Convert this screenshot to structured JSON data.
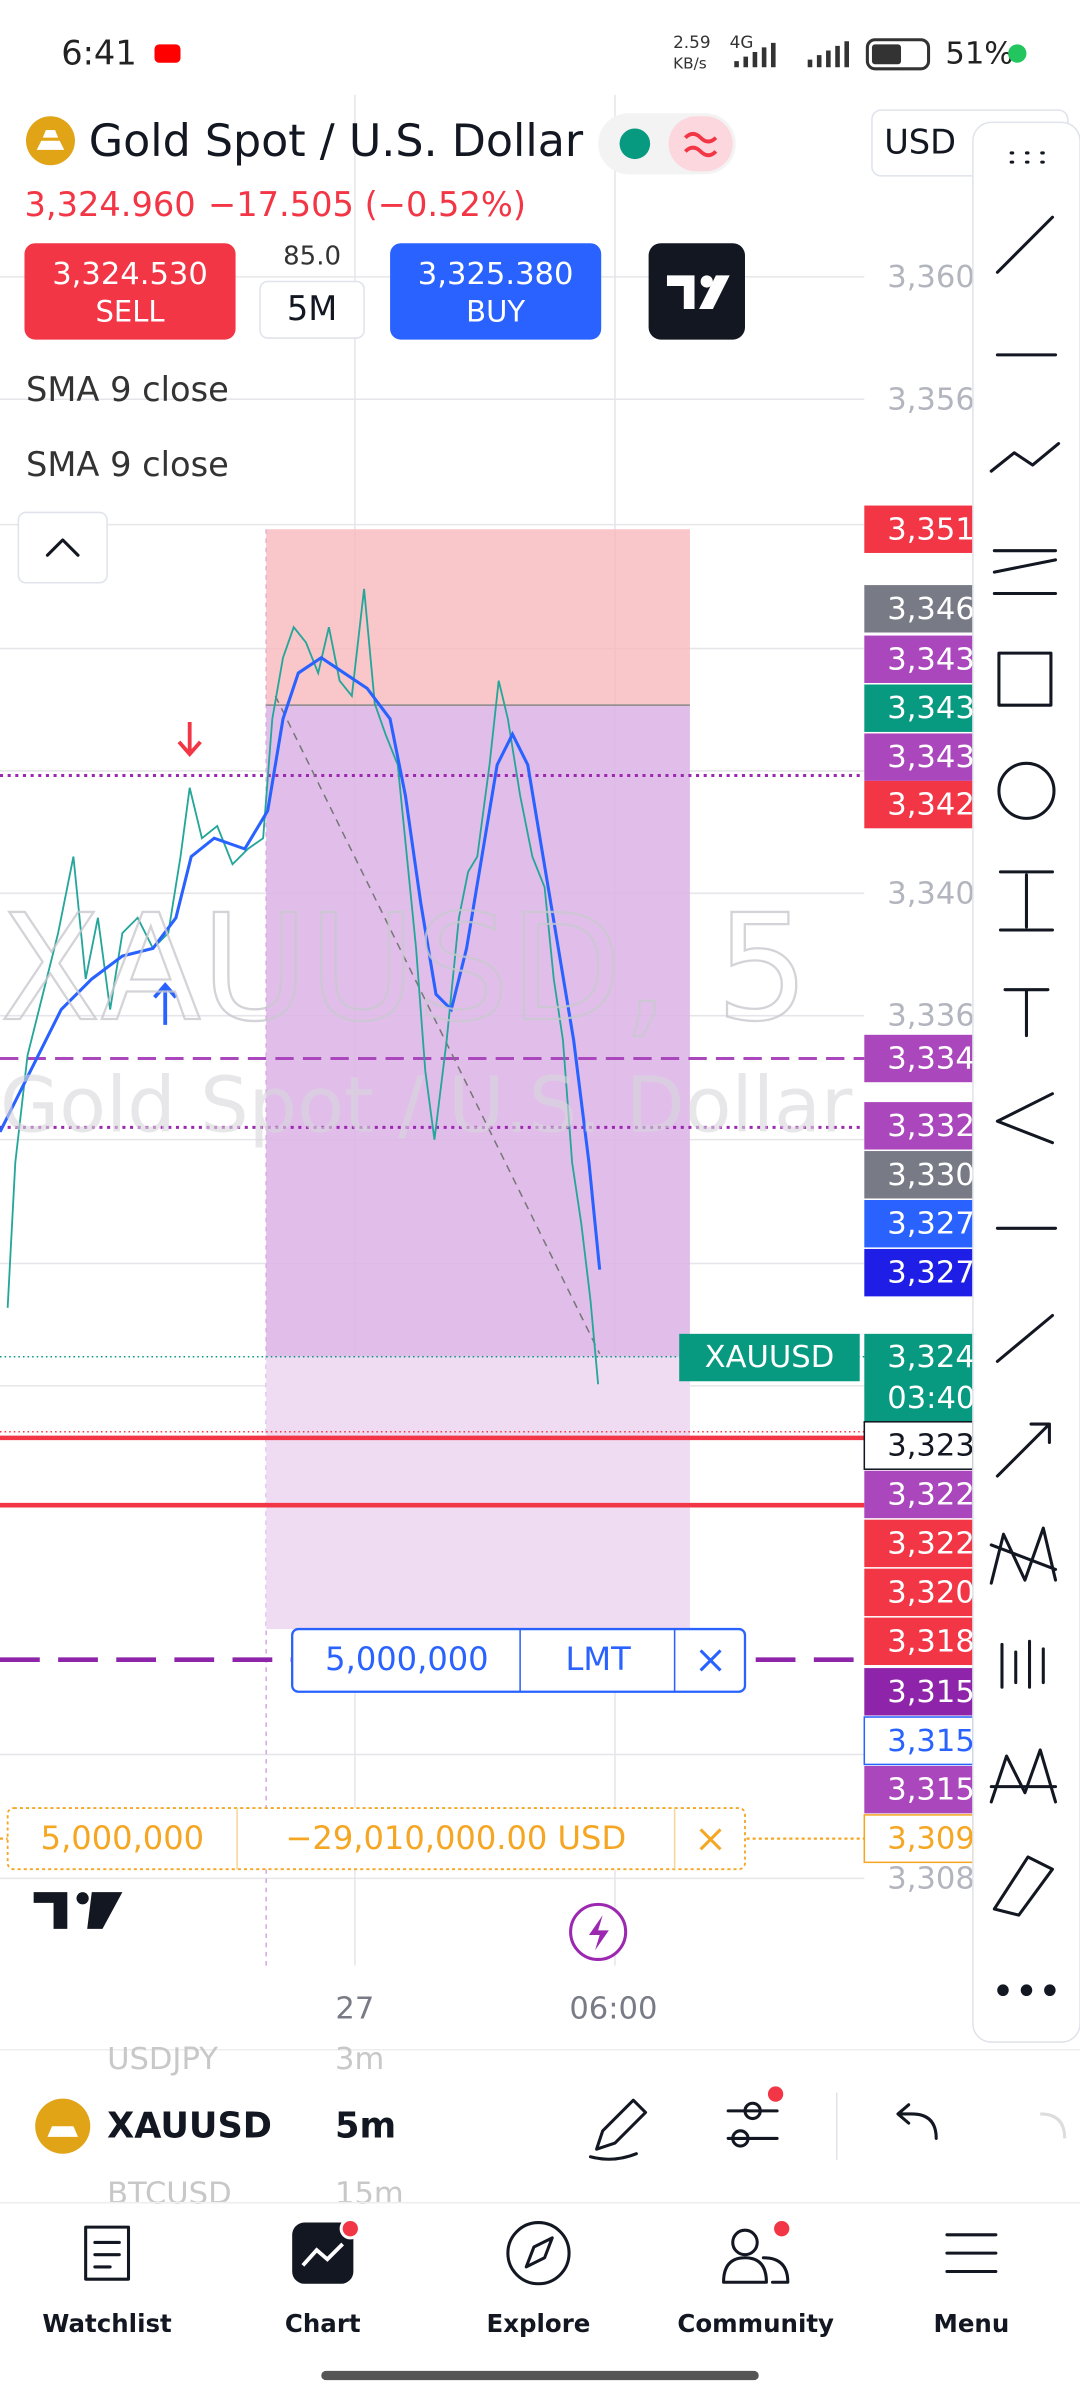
{
  "status_bar": {
    "time": "6:41",
    "net_speed": "2.59",
    "net_unit": "KB/s",
    "network": "4G",
    "battery": "51%"
  },
  "header": {
    "title": "Gold Spot / U.S. Dollar",
    "price": "3,324.960",
    "change": "−17.505 (−0.52%)",
    "currency": "USD"
  },
  "trade": {
    "sell_price": "3,324.530",
    "sell_label": "SELL",
    "spread": "85.0",
    "interval": "5M",
    "buy_price": "3,325.380",
    "buy_label": "BUY"
  },
  "indicators": [
    "SMA 9 close",
    "SMA 9 close"
  ],
  "watermark": {
    "symbol": "XAUUSD, 5",
    "description": "Gold Spot / U.S. Dollar"
  },
  "price_axis": {
    "ticks": [
      "3,360",
      "3,356",
      "3,340",
      "3,336",
      "3,308"
    ],
    "badges": [
      {
        "text": "3,351.",
        "color": "#f23645",
        "text_color": "#ffffff"
      },
      {
        "text": "3,346",
        "color": "#787b86",
        "text_color": "#ffffff"
      },
      {
        "text": "3,343",
        "color": "#ab47bc",
        "text_color": "#ffffff"
      },
      {
        "text": "3,343",
        "color": "#089981",
        "text_color": "#ffffff"
      },
      {
        "text": "3,343",
        "color": "#ab47bc",
        "text_color": "#ffffff"
      },
      {
        "text": "3,342",
        "color": "#f23645",
        "text_color": "#ffffff"
      },
      {
        "text": "3,334",
        "color": "#ab47bc",
        "text_color": "#ffffff"
      },
      {
        "text": "3,332",
        "color": "#ab47bc",
        "text_color": "#ffffff"
      },
      {
        "text": "3,330",
        "color": "#787b86",
        "text_color": "#ffffff"
      },
      {
        "text": "3,327",
        "color": "#2962ff",
        "text_color": "#ffffff"
      },
      {
        "text": "3,327",
        "color": "#1e1ee6",
        "text_color": "#ffffff"
      },
      {
        "text": "3,324",
        "subtext": "03:40",
        "color": "#089981",
        "text_color": "#ffffff"
      },
      {
        "text": "3,323",
        "color": "#ffffff",
        "text_color": "#131722"
      },
      {
        "text": "3,322",
        "color": "#ab47bc",
        "text_color": "#ffffff"
      },
      {
        "text": "3,322",
        "color": "#f23645",
        "text_color": "#ffffff"
      },
      {
        "text": "3,320",
        "color": "#f23645",
        "text_color": "#ffffff"
      },
      {
        "text": "3,318.",
        "color": "#f23645",
        "text_color": "#ffffff"
      },
      {
        "text": "3,315.",
        "color": "#8e24aa",
        "text_color": "#ffffff"
      },
      {
        "text": "3,315.",
        "color": "#ffffff",
        "text_color": "#2962ff"
      },
      {
        "text": "3,315.",
        "color": "#ab47bc",
        "text_color": "#ffffff"
      },
      {
        "text": "3,309",
        "color": "#ffffff",
        "text_color": "#f5a623"
      }
    ]
  },
  "symbol_tag": "XAUUSD",
  "order": {
    "quantity": "5,000,000",
    "type": "LMT"
  },
  "position": {
    "quantity": "5,000,000",
    "pnl": "−29,010,000.00 USD"
  },
  "time_axis": [
    "27",
    "06:00"
  ],
  "bottom_bar": {
    "symbol": "XAUUSD",
    "interval": "5m",
    "other_symbols": [
      {
        "symbol": "USDJPY",
        "interval": "3m"
      },
      {
        "symbol": "BTCUSD",
        "interval": "15m"
      }
    ]
  },
  "nav": [
    "Watchlist",
    "Chart",
    "Explore",
    "Community",
    "Menu"
  ]
}
